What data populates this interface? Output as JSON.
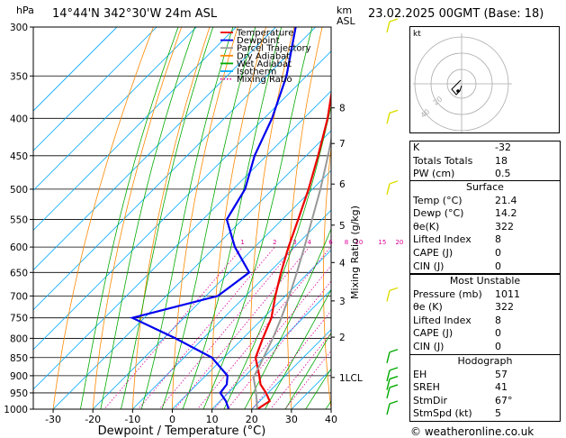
{
  "header": {
    "location": "14°44'N  342°30'W  24m  ASL",
    "datetime": "23.02.2025  00GMT  (Base: 18)",
    "unit_hpa": "hPa",
    "unit_km": "km",
    "unit_asl": "ASL"
  },
  "skewt": {
    "xlabel": "Dewpoint / Temperature (°C)",
    "right_label": "Mixing Ratio (g/kg)",
    "pressure_levels": [
      300,
      350,
      400,
      450,
      500,
      550,
      600,
      650,
      700,
      750,
      800,
      850,
      900,
      950,
      1000
    ],
    "temp_ticks": [
      -30,
      -20,
      -10,
      0,
      10,
      20,
      30,
      40
    ],
    "km_ticks": [
      {
        "label": "8",
        "p": 387
      },
      {
        "label": "7",
        "p": 433
      },
      {
        "label": "6",
        "p": 492
      },
      {
        "label": "5",
        "p": 560
      },
      {
        "label": "4",
        "p": 630
      },
      {
        "label": "3",
        "p": 711
      },
      {
        "label": "2",
        "p": 797
      },
      {
        "label": "1LCL",
        "p": 905
      }
    ],
    "mixing_ratio_labels": [
      "1",
      "2",
      "3",
      "4",
      "6",
      "8",
      "10",
      "15",
      "20",
      "25"
    ],
    "legend": [
      {
        "label": "Temperature",
        "color": "#ee0000"
      },
      {
        "label": "Dewpoint",
        "color": "#0000ee"
      },
      {
        "label": "Parcel Trajectory",
        "color": "#999999"
      },
      {
        "label": "Dry Adiabat",
        "color": "#ff8800"
      },
      {
        "label": "Wet Adiabat",
        "color": "#00aa00"
      },
      {
        "label": "Isotherm",
        "color": "#00aaff"
      },
      {
        "label": "Mixing Ratio",
        "color": "#dd0099"
      }
    ]
  },
  "chart_data": {
    "type": "line",
    "title": "14°44'N  342°30'W  24m  ASL",
    "xlabel": "Dewpoint / Temperature (°C)",
    "ylabel": "hPa",
    "xlim": [
      -35,
      40
    ],
    "ylim": [
      1000,
      300
    ],
    "yscale": "log",
    "skew": "skew-T",
    "series": [
      {
        "name": "Temperature",
        "color": "#ee0000",
        "p": [
          1000,
          975,
          950,
          925,
          900,
          850,
          800,
          750,
          700,
          650,
          600,
          550,
          500,
          450,
          400,
          350,
          300
        ],
        "t": [
          21.4,
          22.5,
          19.5,
          16.0,
          13.5,
          8.0,
          5.0,
          2.0,
          -2.5,
          -7.0,
          -11.5,
          -16.0,
          -21.0,
          -27.0,
          -34.0,
          -43.0,
          -52.0
        ]
      },
      {
        "name": "Dewpoint",
        "color": "#0000ee",
        "p": [
          1000,
          975,
          950,
          925,
          900,
          850,
          800,
          750,
          700,
          650,
          600,
          550,
          500,
          450,
          400,
          350,
          300
        ],
        "t": [
          14.2,
          11.5,
          8.0,
          7.5,
          5.5,
          -3.0,
          -17.0,
          -33.0,
          -17.0,
          -15.0,
          -25.0,
          -34.0,
          -37.0,
          -43.0,
          -48.0,
          -55.0,
          -65.0
        ]
      },
      {
        "name": "Parcel Trajectory",
        "color": "#999999",
        "p": [
          1000,
          950,
          905,
          850,
          800,
          750,
          700,
          650,
          600,
          550,
          500,
          450,
          400,
          350,
          300
        ],
        "t": [
          21.4,
          17.0,
          12.5,
          10.0,
          7.5,
          4.5,
          1.0,
          -3.0,
          -7.5,
          -12.5,
          -18.0,
          -24.5,
          -32.0,
          -41.0,
          -52.0
        ]
      }
    ],
    "wind_barbs_p": [
      300,
      400,
      500,
      700,
      850,
      900,
      925,
      950,
      1000
    ],
    "legend_position": "top-left"
  },
  "hodograph": {
    "unit": "kt",
    "ring_labels": [
      "40",
      "20"
    ]
  },
  "indices": [
    {
      "label": "K",
      "value": "-32"
    },
    {
      "label": "Totals Totals",
      "value": "18"
    },
    {
      "label": "PW (cm)",
      "value": "0.5"
    }
  ],
  "surface": {
    "title": "Surface",
    "rows": [
      {
        "label": "Temp (°C)",
        "value": "21.4"
      },
      {
        "label": "Dewp (°C)",
        "value": "14.2"
      },
      {
        "label": "θe(K)",
        "value": "322"
      },
      {
        "label": "Lifted Index",
        "value": "8"
      },
      {
        "label": "CAPE (J)",
        "value": "0"
      },
      {
        "label": "CIN (J)",
        "value": "0"
      }
    ]
  },
  "most_unstable": {
    "title": "Most Unstable",
    "rows": [
      {
        "label": "Pressure (mb)",
        "value": "1011"
      },
      {
        "label": "θe (K)",
        "value": "322"
      },
      {
        "label": "Lifted Index",
        "value": "8"
      },
      {
        "label": "CAPE (J)",
        "value": "0"
      },
      {
        "label": "CIN (J)",
        "value": "0"
      }
    ]
  },
  "hodo_table": {
    "title": "Hodograph",
    "rows": [
      {
        "label": "EH",
        "value": "57"
      },
      {
        "label": "SREH",
        "value": "41"
      },
      {
        "label": "StmDir",
        "value": "67°"
      },
      {
        "label": "StmSpd (kt)",
        "value": "5"
      }
    ]
  },
  "credit": "© weatheronline.co.uk"
}
